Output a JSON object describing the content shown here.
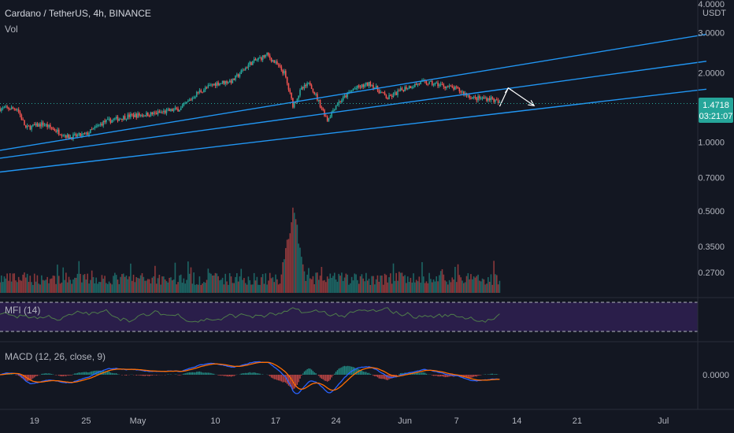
{
  "header": {
    "symbol_line": "Cardano / TetherUS, 4h, BINANCE",
    "vol_label": "Vol"
  },
  "price_axis": {
    "currency": "USDT",
    "ticks": [
      "4.0000",
      "3.0000",
      "2.0000",
      "1.0000",
      "0.7000",
      "0.5000",
      "0.3500",
      "0.2700"
    ],
    "last_price": "1.4718",
    "countdown": "03:21:07"
  },
  "mfi": {
    "label": "MFI (14)"
  },
  "macd": {
    "label": "MACD (12, 26, close, 9)",
    "zero_tick": "0.0000"
  },
  "time_axis": {
    "ticks": [
      "19",
      "25",
      "May",
      "10",
      "17",
      "24",
      "Jun",
      "7",
      "14",
      "21",
      "Jul"
    ]
  },
  "colors": {
    "background": "#131722",
    "up": "#26a69a",
    "down": "#ef5350",
    "trendline": "#2196f3",
    "mfi_band": "#2a1e4a",
    "mfi_line": "#4f7c4a",
    "macd_line": "#2962ff",
    "signal_line": "#ff6d00",
    "price_badge": "#26a69a"
  },
  "chart_data": {
    "type": "candlestick",
    "series_name": "Cardano / TetherUS",
    "interval": "4h",
    "y_scale": "log",
    "ylim": [
      0.22,
      4.0
    ],
    "x_range": [
      "2021-04-15",
      "2021-07-05"
    ],
    "price_path": [
      {
        "d": "2021-04-15",
        "p": 1.4
      },
      {
        "d": "2021-04-17",
        "p": 1.4
      },
      {
        "d": "2021-04-18",
        "p": 1.15
      },
      {
        "d": "2021-04-20",
        "p": 1.2
      },
      {
        "d": "2021-04-23",
        "p": 1.05
      },
      {
        "d": "2021-04-25",
        "p": 1.08
      },
      {
        "d": "2021-04-27",
        "p": 1.22
      },
      {
        "d": "2021-04-30",
        "p": 1.3
      },
      {
        "d": "2021-05-03",
        "p": 1.33
      },
      {
        "d": "2021-05-06",
        "p": 1.4
      },
      {
        "d": "2021-05-08",
        "p": 1.65
      },
      {
        "d": "2021-05-10",
        "p": 1.8
      },
      {
        "d": "2021-05-12",
        "p": 1.85
      },
      {
        "d": "2021-05-14",
        "p": 2.2
      },
      {
        "d": "2021-05-16",
        "p": 2.4
      },
      {
        "d": "2021-05-17",
        "p": 2.2
      },
      {
        "d": "2021-05-18",
        "p": 2.0
      },
      {
        "d": "2021-05-19",
        "p": 1.45
      },
      {
        "d": "2021-05-20",
        "p": 1.7
      },
      {
        "d": "2021-05-21",
        "p": 1.8
      },
      {
        "d": "2021-05-22",
        "p": 1.5
      },
      {
        "d": "2021-05-23",
        "p": 1.25
      },
      {
        "d": "2021-05-24",
        "p": 1.45
      },
      {
        "d": "2021-05-26",
        "p": 1.7
      },
      {
        "d": "2021-05-28",
        "p": 1.8
      },
      {
        "d": "2021-05-30",
        "p": 1.55
      },
      {
        "d": "2021-06-01",
        "p": 1.72
      },
      {
        "d": "2021-06-03",
        "p": 1.82
      },
      {
        "d": "2021-06-05",
        "p": 1.78
      },
      {
        "d": "2021-06-07",
        "p": 1.7
      },
      {
        "d": "2021-06-09",
        "p": 1.55
      },
      {
        "d": "2021-06-11",
        "p": 1.55
      },
      {
        "d": "2021-06-12",
        "p": 1.47
      }
    ],
    "volume_max_day": "2021-05-19",
    "mfi_bands": [
      20,
      80
    ],
    "annotations": {
      "parallel_channel": [
        {
          "from": {
            "d": "2021-04-15",
            "p": 0.92
          },
          "to": {
            "d": "2021-07-06",
            "p": 2.95
          }
        },
        {
          "from": {
            "d": "2021-04-15",
            "p": 0.85
          },
          "to": {
            "d": "2021-07-06",
            "p": 2.25
          }
        },
        {
          "from": {
            "d": "2021-04-15",
            "p": 0.74
          },
          "to": {
            "d": "2021-07-06",
            "p": 1.7
          }
        }
      ],
      "projection_arrow": [
        {
          "d": "2021-06-12",
          "p": 1.43
        },
        {
          "d": "2021-06-13",
          "p": 1.72
        },
        {
          "d": "2021-06-16",
          "p": 1.44
        }
      ],
      "last_price_line": 1.4718
    }
  }
}
